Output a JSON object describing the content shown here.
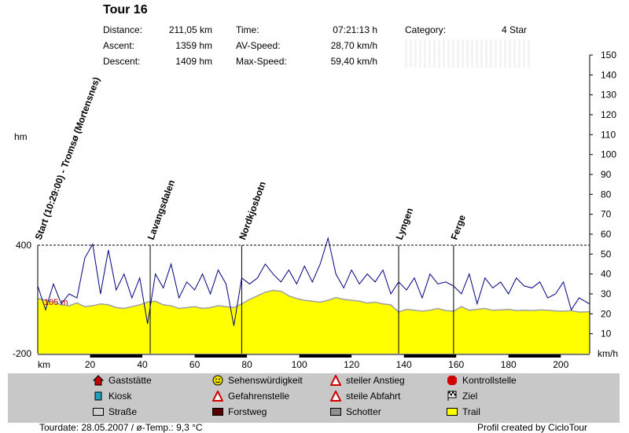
{
  "tour_title": "Tour 16",
  "stats": {
    "distance_label": "Distance:",
    "distance_value": "211,05 km",
    "ascent_label": "Ascent:",
    "ascent_value": "1359 hm",
    "descent_label": "Descent:",
    "descent_value": "1409 hm",
    "time_label": "Time:",
    "time_value": "07:21:13 h",
    "avspeed_label": "AV-Speed:",
    "avspeed_value": "28,70 km/h",
    "maxspeed_label": "Max-Speed:",
    "maxspeed_value": "59,40 km/h",
    "category_label": "Category:",
    "category_value": "4 Star"
  },
  "chart_data": {
    "type": "area",
    "x_unit_label": "km",
    "left_axis_label": "hm",
    "right_axis_label": "km/h",
    "left_ticks": [
      "400",
      "-200"
    ],
    "x_ticks": [
      "20",
      "40",
      "60",
      "80",
      "100",
      "120",
      "140",
      "160",
      "180",
      "200"
    ],
    "right_ticks": [
      "10",
      "20",
      "30",
      "40",
      "50",
      "60",
      "70",
      "80",
      "90",
      "100",
      "110",
      "120",
      "130",
      "140",
      "150"
    ],
    "xlim": [
      0,
      211.05
    ],
    "elevation_ylim": [
      -200,
      400
    ],
    "speed_ylim": [
      0,
      150
    ],
    "start_elevation_label": "105 m",
    "waypoints": [
      {
        "km": 0,
        "label": "Start (10:29:00) - Tromsø (Mortensnes)"
      },
      {
        "km": 43,
        "label": "Lavangsdalen"
      },
      {
        "km": 78,
        "label": "Nordkjosbotn"
      },
      {
        "km": 138,
        "label": "Lyngen"
      },
      {
        "km": 159,
        "label": "Ferge"
      }
    ],
    "elevation": {
      "name": "Trail",
      "x": [
        0,
        3,
        6,
        9,
        12,
        15,
        18,
        21,
        24,
        27,
        30,
        33,
        36,
        39,
        42,
        45,
        48,
        51,
        54,
        57,
        60,
        63,
        66,
        69,
        72,
        75,
        78,
        81,
        84,
        87,
        90,
        93,
        96,
        99,
        102,
        105,
        108,
        111,
        114,
        117,
        120,
        123,
        126,
        129,
        132,
        135,
        138,
        141,
        144,
        147,
        150,
        153,
        156,
        159,
        162,
        165,
        168,
        171,
        174,
        177,
        180,
        183,
        186,
        189,
        192,
        195,
        198,
        201,
        204,
        207,
        211
      ],
      "values": [
        105,
        95,
        85,
        70,
        65,
        80,
        60,
        65,
        75,
        70,
        55,
        50,
        60,
        70,
        85,
        90,
        70,
        65,
        50,
        55,
        60,
        50,
        55,
        65,
        60,
        55,
        75,
        100,
        120,
        140,
        150,
        145,
        120,
        105,
        95,
        90,
        85,
        95,
        110,
        100,
        95,
        90,
        80,
        85,
        75,
        70,
        30,
        45,
        40,
        35,
        40,
        50,
        38,
        35,
        60,
        40,
        45,
        50,
        40,
        42,
        45,
        38,
        40,
        38,
        42,
        40,
        36,
        35,
        38,
        30,
        32
      ]
    },
    "speed": {
      "name": "Speed",
      "x": [
        0,
        3,
        6,
        9,
        12,
        15,
        18,
        21,
        24,
        27,
        30,
        33,
        36,
        39,
        42,
        45,
        48,
        51,
        54,
        57,
        60,
        63,
        66,
        69,
        72,
        75,
        78,
        81,
        84,
        87,
        90,
        93,
        96,
        99,
        102,
        105,
        108,
        111,
        114,
        117,
        120,
        123,
        126,
        129,
        132,
        135,
        138,
        141,
        144,
        147,
        150,
        153,
        156,
        159,
        162,
        165,
        168,
        171,
        174,
        177,
        180,
        183,
        186,
        189,
        192,
        195,
        198,
        201,
        204,
        207,
        211
      ],
      "values": [
        34,
        22,
        35,
        25,
        30,
        28,
        48,
        55,
        30,
        52,
        32,
        40,
        28,
        38,
        15,
        40,
        33,
        45,
        28,
        36,
        32,
        40,
        30,
        42,
        35,
        14,
        38,
        35,
        38,
        45,
        40,
        36,
        42,
        35,
        44,
        36,
        45,
        58,
        40,
        33,
        42,
        35,
        40,
        36,
        42,
        30,
        36,
        32,
        38,
        28,
        40,
        35,
        36,
        34,
        30,
        40,
        25,
        38,
        33,
        36,
        30,
        38,
        34,
        33,
        36,
        28,
        30,
        36,
        22,
        28,
        25
      ]
    },
    "legend": [
      {
        "label": "Gaststätte",
        "icon": "house-icon",
        "color": "#c00000"
      },
      {
        "label": "Kiosk",
        "icon": "cup-icon",
        "color": "#20a0c0"
      },
      {
        "label": "Straße",
        "icon": "swatch",
        "color": "#d0d0d0"
      },
      {
        "label": "Sehenswürdigkeit",
        "icon": "smiley-icon",
        "color": "#f0e000"
      },
      {
        "label": "Gefahrenstelle",
        "icon": "warning-icon",
        "color": "#d00000"
      },
      {
        "label": "Forstweg",
        "icon": "swatch",
        "color": "#5a0000"
      },
      {
        "label": "steiler Anstieg",
        "icon": "warning-icon",
        "color": "#d00000"
      },
      {
        "label": "steile Abfahrt",
        "icon": "warning-icon",
        "color": "#d00000"
      },
      {
        "label": "Schotter",
        "icon": "swatch",
        "color": "#909090"
      },
      {
        "label": "Kontrollstelle",
        "icon": "stop-icon",
        "color": "#d00000"
      },
      {
        "label": "Ziel",
        "icon": "flag-icon",
        "color": "#000000"
      },
      {
        "label": "Trail",
        "icon": "swatch",
        "color": "#ffff00"
      }
    ]
  },
  "footer": {
    "tourdate": "Tourdate: 28.05.2007  /  ø-Temp.: 9,3 °C",
    "credit": "Profil created by CicloTour"
  }
}
